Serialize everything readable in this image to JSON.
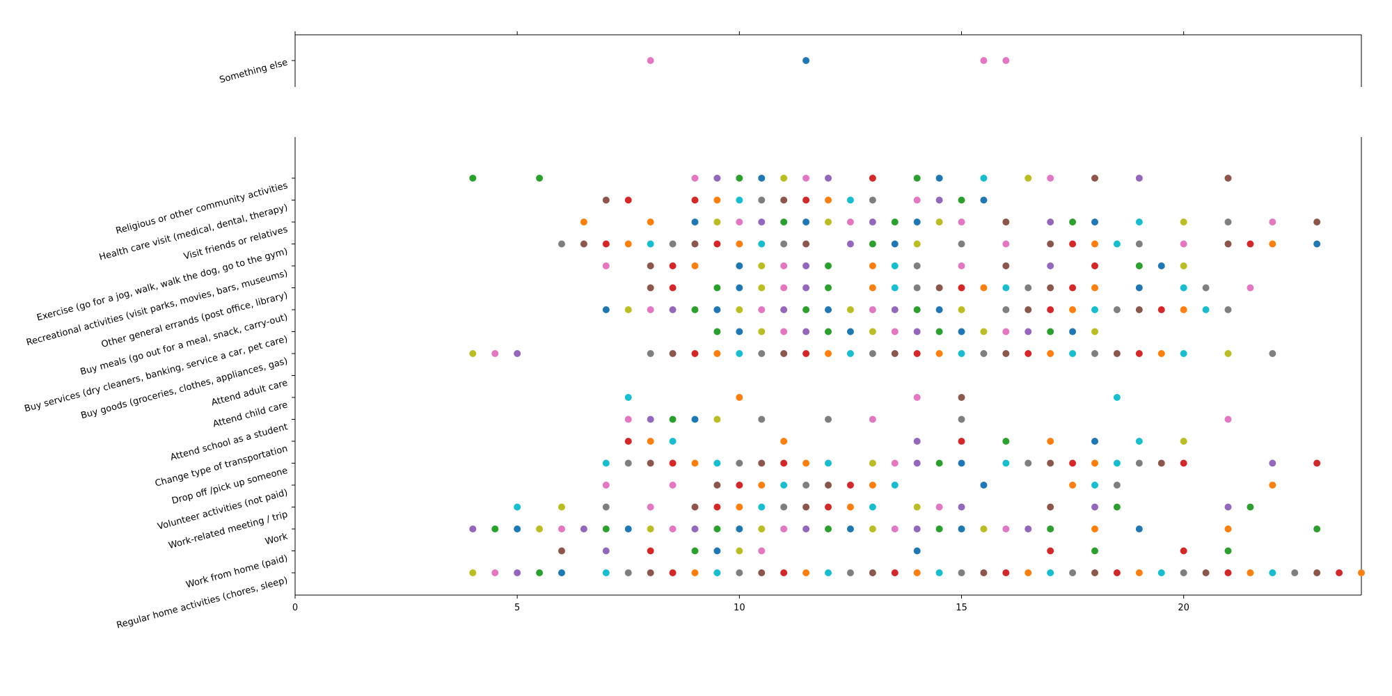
{
  "chart_data": [
    {
      "type": "scatter",
      "title": "",
      "xlabel": "",
      "ylabel": "",
      "xlim": [
        0,
        24
      ],
      "xticks": [
        0,
        5,
        10,
        15,
        20
      ],
      "categories": [
        "Something else"
      ],
      "grid": false,
      "legend": "none",
      "points": [
        {
          "x": 8,
          "cat": 0,
          "color": "#e377c2"
        },
        {
          "x": 11.5,
          "cat": 0,
          "color": "#1f77b4"
        },
        {
          "x": 15.5,
          "cat": 0,
          "color": "#e377c2"
        },
        {
          "x": 16,
          "cat": 0,
          "color": "#e377c2"
        }
      ]
    },
    {
      "type": "scatter",
      "title": "",
      "xlabel": "",
      "ylabel": "",
      "xlim": [
        0,
        24
      ],
      "xticks": [
        0,
        5,
        10,
        15,
        20
      ],
      "xtick_labels": [
        "0",
        "5",
        "10",
        "15",
        "20"
      ],
      "grid": false,
      "legend": "none",
      "categories": [
        "Regular home activities (chores, sleep)",
        "Work from home (paid)",
        "Work",
        "Work-related meeting / trip",
        "Volunteer activities (not paid)",
        "Drop off /pick up someone",
        "Change type of transportation",
        "Attend school as a student",
        "Attend child care",
        "Attend adult care",
        "Buy goods (groceries, clothes, appliances, gas)",
        "Buy services (dry cleaners, banking, service a car, pet care)",
        "Buy meals (go out for a meal, snack, carry-out)",
        "Other general errands (post office, library)",
        "Recreational activities (visit parks, movies, bars, museums)",
        "Exercise (go for a jog, walk, walk the dog, go to the gym)",
        "Visit friends or relatives",
        "Health care visit (medical, dental, therapy)",
        "Religious or other community activities"
      ],
      "palette": [
        "#1f77b4",
        "#ff7f0e",
        "#2ca02c",
        "#d62728",
        "#9467bd",
        "#8c564b",
        "#e377c2",
        "#7f7f7f",
        "#bcbd22",
        "#17becf"
      ],
      "rows": [
        [
          4,
          4.5,
          5,
          5.5,
          6,
          7,
          7.5,
          8,
          8.5,
          9,
          9.5,
          10,
          10.5,
          11,
          11.5,
          12,
          12.5,
          13,
          13.5,
          14,
          14.5,
          15,
          15.5,
          16,
          16.5,
          17,
          17.5,
          18,
          18.5,
          19,
          19.5,
          20,
          20.5,
          21,
          21.5,
          22,
          22.5,
          23,
          23.5,
          24
        ],
        [
          6,
          7,
          8,
          9,
          9.5,
          10,
          10.5,
          14,
          17,
          18,
          20,
          21
        ],
        [
          4,
          4.5,
          5,
          5.5,
          6,
          6.5,
          7,
          7.5,
          8,
          8.5,
          9,
          9.5,
          10,
          10.5,
          11,
          11.5,
          12,
          12.5,
          13,
          13.5,
          14,
          14.5,
          15,
          15.5,
          16,
          16.5,
          17,
          18,
          19,
          21,
          23
        ],
        [
          5,
          6,
          7,
          8,
          9,
          9.5,
          10,
          10.5,
          11,
          11.5,
          12,
          12.5,
          13,
          14,
          14.5,
          15,
          17,
          18,
          18.5,
          21,
          21.5
        ],
        [
          7,
          8.5,
          9.5,
          10,
          10.5,
          11,
          11.5,
          12,
          12.5,
          13,
          13.5,
          15.5,
          17.5,
          18,
          18.5,
          22
        ],
        [
          7,
          7.5,
          8,
          8.5,
          9,
          9.5,
          10,
          10.5,
          11,
          11.5,
          12,
          13,
          13.5,
          14,
          14.5,
          15,
          16,
          16.5,
          17,
          17.5,
          18,
          18.5,
          19,
          19.5,
          20,
          22,
          23
        ],
        [
          7.5,
          8,
          8.5,
          11,
          14,
          15,
          16,
          17,
          18,
          19,
          20
        ],
        [
          7.5,
          8,
          8.5,
          9,
          9.5,
          10.5,
          12,
          13,
          15,
          21
        ],
        [
          7.5,
          10,
          14,
          15,
          18.5
        ],
        [],
        [
          4,
          4.5,
          5,
          8,
          8.5,
          9,
          9.5,
          10,
          10.5,
          11,
          11.5,
          12,
          12.5,
          13,
          13.5,
          14,
          14.5,
          15,
          15.5,
          16,
          16.5,
          17,
          17.5,
          18,
          18.5,
          19,
          19.5,
          20,
          21,
          22
        ],
        [
          9.5,
          10,
          10.5,
          11,
          11.5,
          12,
          12.5,
          13,
          13.5,
          14,
          14.5,
          15,
          15.5,
          16,
          16.5,
          17,
          17.5,
          18
        ],
        [
          7,
          7.5,
          8,
          8.5,
          9,
          9.5,
          10,
          10.5,
          11,
          11.5,
          12,
          12.5,
          13,
          13.5,
          14,
          14.5,
          15,
          16,
          16.5,
          17,
          17.5,
          18,
          18.5,
          19,
          19.5,
          20,
          20.5,
          21
        ],
        [
          8,
          8.5,
          9.5,
          10,
          10.5,
          11,
          11.5,
          12,
          13,
          13.5,
          14,
          14.5,
          15,
          15.5,
          16,
          16.5,
          17,
          17.5,
          18,
          19,
          20,
          20.5,
          21.5
        ],
        [
          7,
          8,
          8.5,
          9,
          10,
          10.5,
          11,
          11.5,
          12,
          13,
          13.5,
          14,
          15,
          16,
          17,
          18,
          19,
          19.5,
          20
        ],
        [
          6,
          6.5,
          7,
          7.5,
          8,
          8.5,
          9,
          9.5,
          10,
          10.5,
          11,
          11.5,
          12.5,
          13,
          13.5,
          14,
          15,
          16,
          17,
          17.5,
          18,
          18.5,
          19,
          20,
          21,
          21.5,
          22,
          23
        ],
        [
          6.5,
          8,
          9,
          9.5,
          10,
          10.5,
          11,
          11.5,
          12,
          12.5,
          13,
          13.5,
          14,
          14.5,
          15,
          16,
          17,
          17.5,
          18,
          19,
          20,
          21,
          22,
          23
        ],
        [
          7,
          7.5,
          9,
          9.5,
          10,
          10.5,
          11,
          11.5,
          12,
          12.5,
          13,
          14,
          14.5,
          15,
          15.5
        ],
        [
          4,
          5.5,
          9,
          9.5,
          10,
          10.5,
          11,
          11.5,
          12,
          13,
          14,
          14.5,
          15.5,
          16.5,
          17,
          18,
          19,
          21
        ]
      ]
    }
  ]
}
